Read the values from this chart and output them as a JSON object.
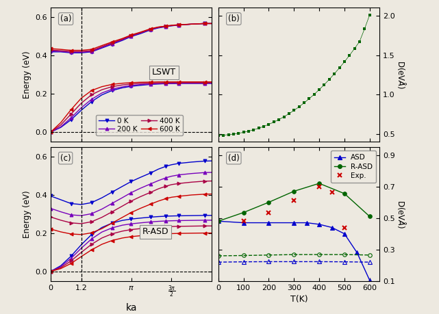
{
  "fig_width": 6.41,
  "fig_height": 4.59,
  "dpi": 100,
  "background": "#ede9e0",
  "panel_labels": [
    "(a)",
    "(b)",
    "(c)",
    "(d)"
  ],
  "vline_x": 1.2,
  "ka_max": 6.283185307,
  "ka_ticks": [
    0,
    1.2,
    3.14159265,
    4.71238898
  ],
  "ka_ticklabels": [
    "0",
    "1.2",
    "$\\pi$",
    "$\\frac{3\\pi}{2}$"
  ],
  "temps": [
    "0 K",
    "200 K",
    "400 K",
    "600 K"
  ],
  "temp_colors": [
    "#0000cc",
    "#7700bb",
    "#aa0044",
    "#cc0000"
  ],
  "lswt_upper_x": [
    0.0,
    0.4,
    0.8,
    1.2,
    1.6,
    2.0,
    2.4,
    2.8,
    3.14,
    3.5,
    3.9,
    4.2,
    4.5,
    4.712,
    5.0,
    5.5,
    6.0,
    6.283
  ],
  "lswt_upper_0K": [
    0.42,
    0.42,
    0.415,
    0.415,
    0.42,
    0.44,
    0.46,
    0.48,
    0.5,
    0.515,
    0.535,
    0.545,
    0.552,
    0.556,
    0.56,
    0.565,
    0.568,
    0.568
  ],
  "lswt_upper_200K": [
    0.425,
    0.422,
    0.418,
    0.418,
    0.422,
    0.443,
    0.463,
    0.483,
    0.502,
    0.518,
    0.537,
    0.547,
    0.553,
    0.557,
    0.56,
    0.565,
    0.568,
    0.568
  ],
  "lswt_upper_400K": [
    0.43,
    0.426,
    0.422,
    0.422,
    0.426,
    0.447,
    0.467,
    0.486,
    0.505,
    0.52,
    0.539,
    0.549,
    0.554,
    0.558,
    0.561,
    0.565,
    0.568,
    0.568
  ],
  "lswt_upper_600K": [
    0.437,
    0.433,
    0.428,
    0.428,
    0.433,
    0.453,
    0.472,
    0.49,
    0.508,
    0.523,
    0.541,
    0.55,
    0.555,
    0.559,
    0.562,
    0.565,
    0.568,
    0.568
  ],
  "lswt_lower_x": [
    0.0,
    0.4,
    0.8,
    1.2,
    1.6,
    2.0,
    2.4,
    2.8,
    3.14,
    3.5,
    3.9,
    4.2,
    4.5,
    4.712,
    5.0,
    5.5,
    6.0,
    6.283
  ],
  "lswt_lower_0K": [
    0.0,
    0.025,
    0.065,
    0.115,
    0.16,
    0.195,
    0.218,
    0.232,
    0.24,
    0.245,
    0.25,
    0.252,
    0.254,
    0.254,
    0.255,
    0.255,
    0.255,
    0.255
  ],
  "lswt_lower_200K": [
    0.0,
    0.028,
    0.075,
    0.128,
    0.172,
    0.205,
    0.225,
    0.237,
    0.244,
    0.249,
    0.252,
    0.254,
    0.255,
    0.255,
    0.256,
    0.256,
    0.256,
    0.256
  ],
  "lswt_lower_400K": [
    0.0,
    0.038,
    0.095,
    0.152,
    0.196,
    0.222,
    0.238,
    0.247,
    0.252,
    0.255,
    0.257,
    0.258,
    0.259,
    0.259,
    0.259,
    0.259,
    0.259,
    0.259
  ],
  "lswt_lower_600K": [
    0.0,
    0.05,
    0.118,
    0.178,
    0.218,
    0.238,
    0.25,
    0.256,
    0.259,
    0.261,
    0.262,
    0.263,
    0.263,
    0.263,
    0.263,
    0.263,
    0.263,
    0.263
  ],
  "panel_b_T": [
    0,
    20,
    40,
    60,
    80,
    100,
    120,
    140,
    160,
    180,
    200,
    220,
    240,
    260,
    280,
    300,
    320,
    340,
    360,
    380,
    400,
    420,
    440,
    460,
    480,
    500,
    520,
    540,
    560,
    580,
    600
  ],
  "panel_b_D": [
    0.48,
    0.484,
    0.49,
    0.498,
    0.508,
    0.52,
    0.535,
    0.552,
    0.572,
    0.595,
    0.621,
    0.65,
    0.682,
    0.717,
    0.756,
    0.798,
    0.844,
    0.893,
    0.946,
    1.002,
    1.062,
    1.125,
    1.192,
    1.263,
    1.337,
    1.415,
    1.497,
    1.583,
    1.673,
    1.835,
    2.01
  ],
  "panel_b_color": "#006400",
  "panel_b_ylim": [
    0.4,
    2.1
  ],
  "panel_b_yticks": [
    0.5,
    1.0,
    1.5,
    2.0
  ],
  "rasd_upper_x": [
    0.0,
    0.4,
    0.8,
    1.2,
    1.6,
    2.0,
    2.4,
    2.8,
    3.14,
    3.5,
    3.9,
    4.2,
    4.5,
    4.712,
    5.0,
    5.5,
    6.0,
    6.283
  ],
  "rasd_upper_0K": [
    0.395,
    0.375,
    0.355,
    0.35,
    0.36,
    0.385,
    0.415,
    0.445,
    0.47,
    0.492,
    0.515,
    0.535,
    0.55,
    0.558,
    0.565,
    0.572,
    0.577,
    0.578
  ],
  "rasd_upper_200K": [
    0.33,
    0.312,
    0.296,
    0.292,
    0.302,
    0.326,
    0.356,
    0.386,
    0.412,
    0.435,
    0.458,
    0.475,
    0.49,
    0.498,
    0.505,
    0.512,
    0.517,
    0.518
  ],
  "rasd_upper_400K": [
    0.285,
    0.268,
    0.254,
    0.25,
    0.26,
    0.283,
    0.312,
    0.342,
    0.368,
    0.391,
    0.414,
    0.432,
    0.446,
    0.454,
    0.46,
    0.467,
    0.472,
    0.473
  ],
  "rasd_upper_600K": [
    0.222,
    0.207,
    0.196,
    0.193,
    0.202,
    0.224,
    0.253,
    0.283,
    0.308,
    0.33,
    0.352,
    0.368,
    0.381,
    0.388,
    0.393,
    0.4,
    0.404,
    0.405
  ],
  "rasd_lower_x": [
    0.0,
    0.4,
    0.8,
    1.2,
    1.6,
    2.0,
    2.4,
    2.8,
    3.14,
    3.5,
    3.9,
    4.2,
    4.5,
    4.712,
    5.0,
    5.5,
    6.0,
    6.283
  ],
  "rasd_lower_0K": [
    0.0,
    0.03,
    0.08,
    0.14,
    0.193,
    0.23,
    0.253,
    0.267,
    0.274,
    0.279,
    0.284,
    0.287,
    0.289,
    0.29,
    0.291,
    0.292,
    0.293,
    0.293
  ],
  "rasd_lower_200K": [
    0.0,
    0.025,
    0.068,
    0.122,
    0.17,
    0.206,
    0.228,
    0.242,
    0.249,
    0.254,
    0.259,
    0.262,
    0.264,
    0.265,
    0.266,
    0.267,
    0.268,
    0.268
  ],
  "rasd_lower_400K": [
    0.0,
    0.02,
    0.055,
    0.1,
    0.142,
    0.175,
    0.197,
    0.211,
    0.219,
    0.224,
    0.229,
    0.232,
    0.234,
    0.235,
    0.236,
    0.237,
    0.238,
    0.238
  ],
  "rasd_lower_600K": [
    0.0,
    0.015,
    0.042,
    0.078,
    0.113,
    0.142,
    0.162,
    0.175,
    0.182,
    0.187,
    0.192,
    0.195,
    0.197,
    0.198,
    0.199,
    0.2,
    0.201,
    0.201
  ],
  "panel_d_T_asd": [
    0,
    100,
    200,
    300,
    350,
    400,
    450,
    500,
    550,
    600
  ],
  "panel_d_D_asd": [
    0.48,
    0.47,
    0.47,
    0.47,
    0.47,
    0.46,
    0.44,
    0.4,
    0.28,
    0.105
  ],
  "panel_d_T_rasd_hi": [
    0,
    100,
    200,
    300,
    400,
    500,
    600
  ],
  "panel_d_D_rasd_hi": [
    0.48,
    0.535,
    0.6,
    0.67,
    0.72,
    0.655,
    0.51
  ],
  "panel_d_T_rasd_lo": [
    0,
    100,
    200,
    300,
    400,
    500,
    600
  ],
  "panel_d_D_rasd_lo": [
    0.26,
    0.262,
    0.265,
    0.268,
    0.268,
    0.268,
    0.265
  ],
  "panel_d_T_asd_lo": [
    0,
    100,
    200,
    300,
    400,
    500,
    600
  ],
  "panel_d_D_asd_lo": [
    0.22,
    0.222,
    0.223,
    0.223,
    0.223,
    0.222,
    0.22
  ],
  "panel_d_T_exp": [
    100,
    200,
    300,
    400,
    450,
    500
  ],
  "panel_d_D_exp": [
    0.48,
    0.535,
    0.61,
    0.7,
    0.665,
    0.44
  ],
  "panel_d_color_asd": "#0000cc",
  "panel_d_color_rasd": "#006400",
  "panel_d_color_exp": "#cc0000",
  "panel_d_ylim": [
    0.1,
    0.95
  ],
  "panel_d_yticks": [
    0.1,
    0.3,
    0.5,
    0.7,
    0.9
  ]
}
